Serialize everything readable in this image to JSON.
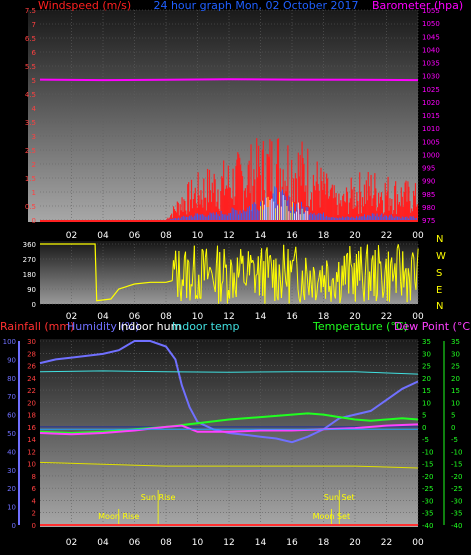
{
  "colors": {
    "wind": "#ff2020",
    "wind_gust": "#3060ff",
    "barometer": "#ff00ff",
    "direction": "#ffff00",
    "rainfall": "#ff3030",
    "humidity": "#7070ff",
    "indoor_hum": "#ffffff",
    "indoor_temp": "#40e0e0",
    "temperature": "#20ff20",
    "dew_point": "#ff40ff",
    "axis_rain": "#ff3030",
    "axis_hum": "#7070ff",
    "axis_temp": "#20ff20",
    "grid": "#606060",
    "time_axis": "#ffffff"
  },
  "chart_data": [
    {
      "type": "line",
      "title": "24 hour graph Mon, 02 October 2017",
      "left_label": "Windspeed (m/s)",
      "right_label": "Barometer (hpa)",
      "ylim_left": [
        0,
        7.5
      ],
      "yticks_left": [
        "0",
        "0.5",
        "1",
        "1.5",
        "2",
        "2.5",
        "3",
        "3.5",
        "4",
        "4.5",
        "5",
        "5.5",
        "6",
        "6.5",
        "7",
        "7.5"
      ],
      "ylim_right": [
        975,
        1055
      ],
      "yticks_right": [
        "975",
        "980",
        "985",
        "990",
        "995",
        "1000",
        "1005",
        "1010",
        "1015",
        "1020",
        "1025",
        "1030",
        "1035",
        "1040",
        "1045",
        "1050",
        "1055"
      ],
      "xticks": [
        "02",
        "04",
        "06",
        "08",
        "10",
        "12",
        "14",
        "16",
        "18",
        "20",
        "22",
        "00"
      ],
      "series": [
        {
          "key": "barometer",
          "axis": "right",
          "x": [
            0,
            4,
            8,
            12,
            16,
            20,
            24
          ],
          "values": [
            1028.5,
            1028.3,
            1028.4,
            1028.6,
            1028.5,
            1028.4,
            1028.3
          ]
        },
        {
          "key": "wind_avg",
          "axis": "left",
          "x": [
            0,
            8,
            9,
            10,
            11,
            12,
            13,
            14,
            15,
            16,
            17,
            18,
            19,
            20,
            21,
            22,
            23,
            24
          ],
          "values": [
            0,
            0,
            0.6,
            0.9,
            1.1,
            1.2,
            1.4,
            1.6,
            1.8,
            1.7,
            1.5,
            1.0,
            0.5,
            0.9,
            1.0,
            0.9,
            0.8,
            0.7
          ]
        },
        {
          "key": "wind_gust",
          "axis": "left",
          "x": [
            0,
            8,
            9,
            10,
            11,
            12,
            13,
            14,
            15,
            16,
            17,
            18,
            19,
            20,
            21,
            22,
            23,
            24
          ],
          "values": [
            0,
            0,
            0.1,
            0.2,
            0.2,
            0.3,
            0.4,
            0.7,
            0.9,
            0.6,
            0.4,
            0.2,
            0.1,
            0.1,
            0.2,
            0.2,
            0.1,
            0.1
          ]
        }
      ]
    },
    {
      "type": "scatter",
      "title": "",
      "ylim": [
        0,
        360
      ],
      "yticks": [
        "0",
        "90",
        "180",
        "270",
        "360"
      ],
      "direction_labels": [
        "N",
        "W",
        "S",
        "E",
        "N"
      ],
      "xticks": [
        "02",
        "04",
        "06",
        "08",
        "10",
        "12",
        "14",
        "16",
        "18",
        "20",
        "22",
        "00"
      ],
      "series": [
        {
          "key": "direction",
          "x": [
            0,
            3.5,
            3.6,
            4.5,
            5,
            6,
            7,
            8,
            8.4
          ],
          "values": [
            360,
            360,
            20,
            30,
            90,
            120,
            130,
            130,
            140
          ]
        }
      ]
    },
    {
      "type": "line",
      "labels": {
        "rainfall": "Rainfall (mm)",
        "humidity": "Humidity (%)",
        "indoor_hum": "Indoor hum",
        "indoor_temp": "Indoor temp",
        "temperature": "Temperature (°C)",
        "dew_point": "Dew Point (°C)"
      },
      "ylim_rain": [
        0,
        30
      ],
      "yticks_rain": [
        "0",
        "2",
        "4",
        "6",
        "8",
        "10",
        "12",
        "14",
        "16",
        "18",
        "20",
        "22",
        "24",
        "26",
        "28",
        "30"
      ],
      "ylim_hum": [
        0,
        100
      ],
      "yticks_hum": [
        "0",
        "10",
        "20",
        "30",
        "40",
        "50",
        "60",
        "70",
        "80",
        "90",
        "100"
      ],
      "ylim_temp": [
        -40,
        35
      ],
      "yticks_temp": [
        "-40",
        "-35",
        "-30",
        "-25",
        "-20",
        "-15",
        "-10",
        "-5",
        "0",
        "5",
        "10",
        "15",
        "20",
        "25",
        "30",
        "35"
      ],
      "yticks_temp_inner": [
        "-40",
        "-35",
        "-30",
        "-25",
        "-20",
        "-15",
        "-10",
        "-5",
        "0",
        "5",
        "10",
        "15",
        "20",
        "25",
        "30",
        "35"
      ],
      "xticks": [
        "02",
        "04",
        "06",
        "08",
        "10",
        "12",
        "14",
        "16",
        "18",
        "20",
        "22",
        "00"
      ],
      "annotations": [
        {
          "label": "Moon Rise",
          "x": 5.0,
          "pos": "low"
        },
        {
          "label": "Sun Rise",
          "x": 7.5,
          "pos": "high"
        },
        {
          "label": "Sun Set",
          "x": 19.0,
          "pos": "high"
        },
        {
          "label": "Moon Set",
          "x": 18.5,
          "pos": "low"
        }
      ],
      "series": [
        {
          "key": "humidity",
          "axis": "hum",
          "x": [
            0,
            1,
            2,
            3,
            4,
            5,
            6,
            7,
            8,
            8.6,
            9,
            9.5,
            10,
            11,
            12,
            13,
            14,
            15,
            16,
            17,
            18,
            19,
            20,
            21,
            22,
            23,
            24
          ],
          "values": [
            88,
            90,
            91,
            92,
            93,
            95,
            100,
            100,
            97,
            90,
            76,
            64,
            56,
            52,
            50,
            49,
            48,
            47,
            45,
            48,
            52,
            58,
            60,
            62,
            68,
            74,
            78
          ]
        },
        {
          "key": "indoor_temp",
          "axis": "temp",
          "x": [
            0,
            4,
            8,
            12,
            16,
            20,
            24
          ],
          "values": [
            22.5,
            22.8,
            22.5,
            22.3,
            22.5,
            22.5,
            21.5
          ]
        },
        {
          "key": "temperature",
          "axis": "temp",
          "x": [
            0,
            2,
            4,
            6,
            8,
            10,
            12,
            14,
            16,
            17,
            18,
            19,
            20,
            21,
            22,
            23,
            24
          ],
          "values": [
            -2,
            -2.5,
            -2,
            -1,
            0,
            1.5,
            3,
            4,
            5,
            5.5,
            5,
            4,
            3,
            2.5,
            3,
            3.5,
            3
          ]
        },
        {
          "key": "dew_point",
          "axis": "temp",
          "x": [
            0,
            2,
            4,
            6,
            8,
            9,
            10,
            12,
            14,
            16,
            18,
            20,
            22,
            24
          ],
          "values": [
            -2.5,
            -3,
            -2.5,
            -1.5,
            0,
            0.5,
            -2,
            -2,
            -1.5,
            -1.5,
            -1,
            -0.5,
            0.5,
            1
          ]
        },
        {
          "key": "indoor_hum",
          "axis": "hum",
          "x": [
            0,
            4,
            8,
            12,
            16,
            20,
            24
          ],
          "values": [
            52,
            52,
            52,
            52,
            52,
            52,
            52
          ]
        },
        {
          "key": "rainfall",
          "axis": "rain",
          "x": [
            0,
            24
          ],
          "values": [
            0,
            0
          ]
        },
        {
          "key": "outdoor_low",
          "axis": "hum",
          "x": [
            0,
            4,
            8,
            12,
            16,
            20,
            24
          ],
          "values": [
            34,
            33,
            32,
            32,
            32,
            32,
            31
          ]
        }
      ]
    }
  ]
}
